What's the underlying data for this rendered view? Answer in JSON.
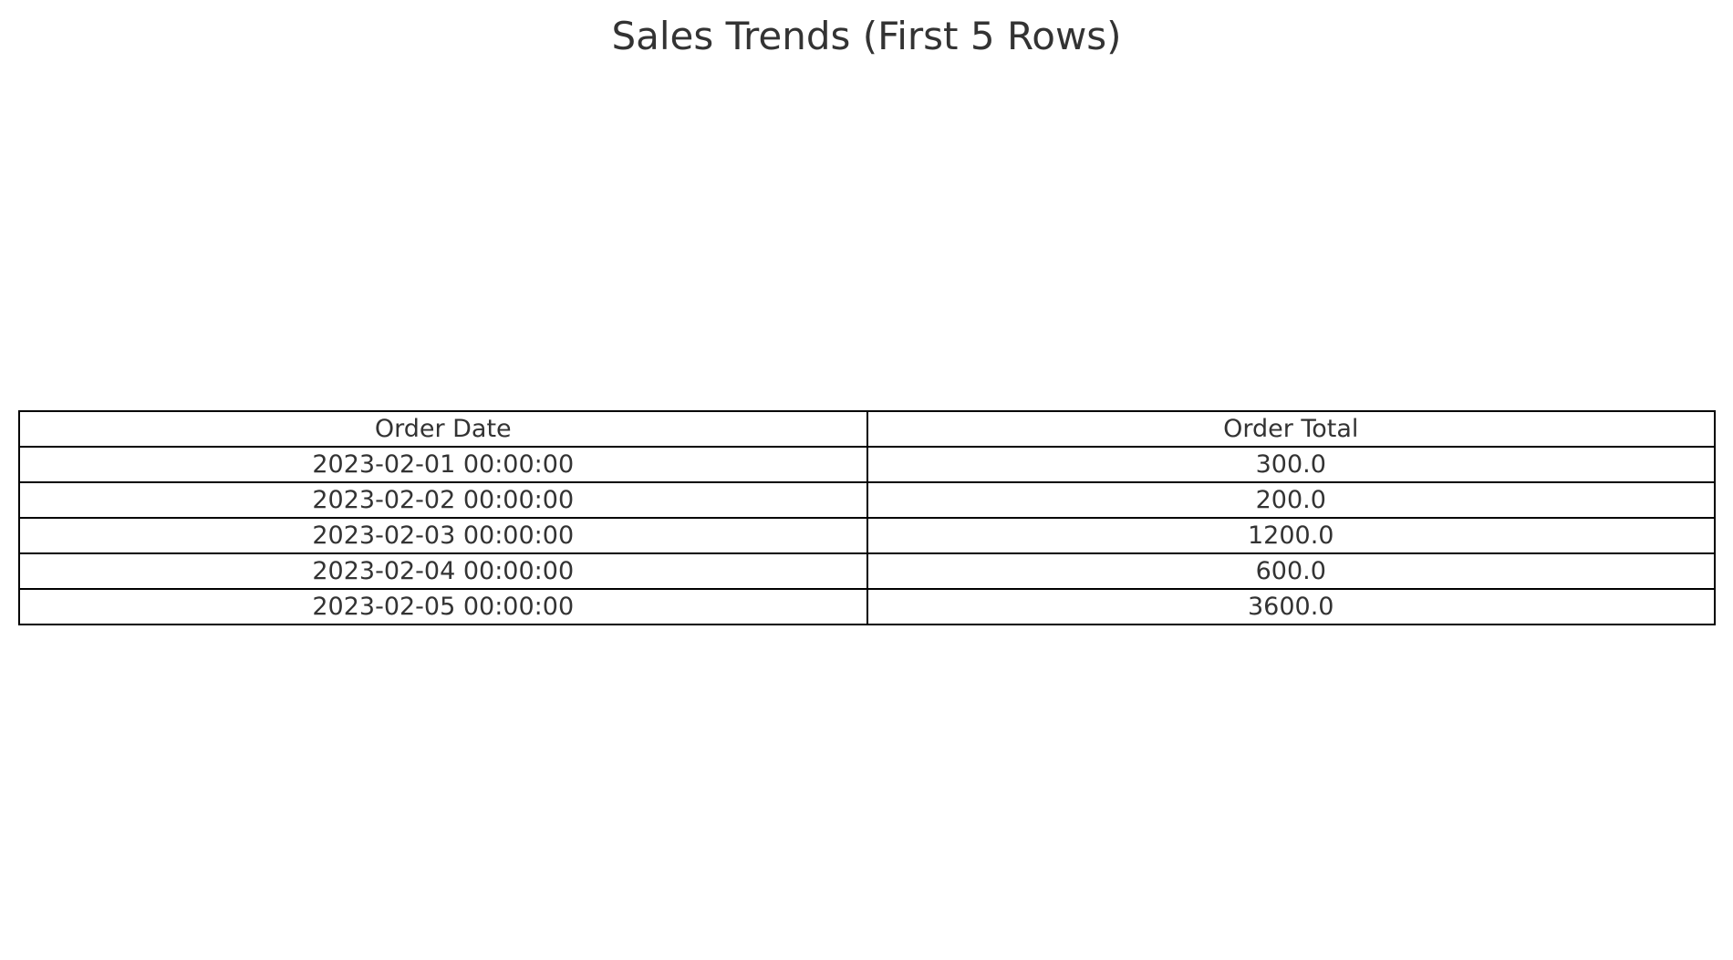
{
  "chart_data": {
    "type": "table",
    "title": "Sales Trends (First 5 Rows)",
    "columns": [
      "Order Date",
      "Order Total"
    ],
    "rows": [
      [
        "2023-02-01 00:00:00",
        "300.0"
      ],
      [
        "2023-02-02 00:00:00",
        "200.0"
      ],
      [
        "2023-02-03 00:00:00",
        "1200.0"
      ],
      [
        "2023-02-04 00:00:00",
        "600.0"
      ],
      [
        "2023-02-05 00:00:00",
        "3600.0"
      ]
    ]
  }
}
